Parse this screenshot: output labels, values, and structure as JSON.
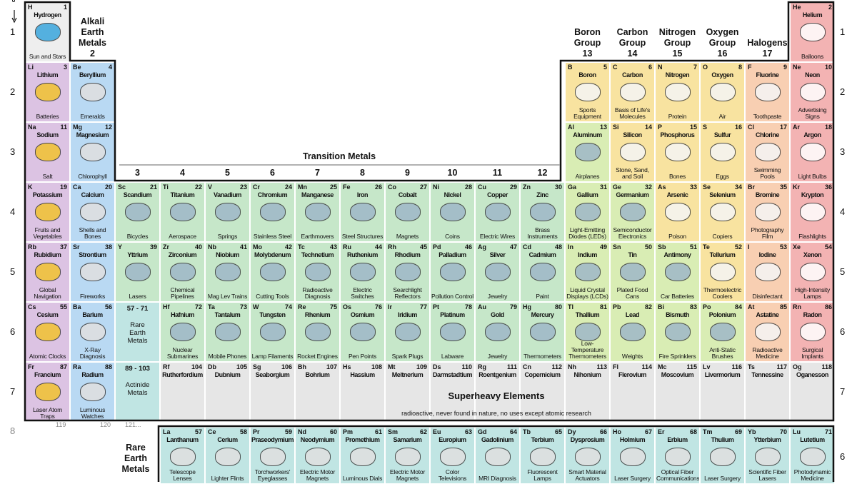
{
  "axis_label": "P",
  "categories": {
    "hydrogen": {
      "bg": "#eeeeee",
      "icon": "#3aa6dd"
    },
    "alkali": {
      "bg": "#dcc3e3",
      "icon": "#f2c230"
    },
    "alkaline": {
      "bg": "#b9d9f3",
      "icon": "#e0e0e0"
    },
    "transition": {
      "bg": "#c6e7c9",
      "icon": "#9fb8c8"
    },
    "post": {
      "bg": "#d9edb4",
      "icon": "#9fb8c8"
    },
    "nonmetal": {
      "bg": "#f8e3a0",
      "icon": "#f5f5f5"
    },
    "halogen": {
      "bg": "#f8cfb2",
      "icon": "#f5f5f5"
    },
    "noble": {
      "bg": "#f3b3b3",
      "icon": "#ffffff"
    },
    "rare": {
      "bg": "#c0e5e3",
      "icon": "#e0e0e0"
    },
    "superheavy": {
      "bg": "#e6e6e6",
      "icon": ""
    }
  },
  "group_labels": [
    {
      "text": "Alkali\nEarth\nMetals\n2",
      "col": 2
    },
    {
      "text": "Boron\nGroup\n13",
      "col": 13
    },
    {
      "text": "Carbon\nGroup\n14",
      "col": 14
    },
    {
      "text": "Nitrogen\nGroup\n15",
      "col": 15
    },
    {
      "text": "Oxygen\nGroup\n16",
      "col": 16
    },
    {
      "text": "Halogens\n17",
      "col": 17
    }
  ],
  "transition_title": "Transition Metals",
  "transition_groups": [
    "3",
    "4",
    "5",
    "6",
    "7",
    "8",
    "9",
    "10",
    "11",
    "12"
  ],
  "periods_left": [
    "1",
    "2",
    "3",
    "4",
    "5",
    "6",
    "7"
  ],
  "periods_right": [
    "1",
    "2",
    "3",
    "4",
    "5",
    "6",
    "7"
  ],
  "period8": {
    "label": "8",
    "values": [
      "119",
      "120",
      "121..."
    ]
  },
  "lanthanide_period": "6",
  "rare_earth_title": "Rare\nEarth\nMetals",
  "placeholders": [
    {
      "range": "57 - 71",
      "text": "Rare\nEarth\nMetals",
      "row": 6
    },
    {
      "range": "89 - 103",
      "text": "Actinide\nMetals",
      "row": 7
    }
  ],
  "superheavy": {
    "title": "Superheavy Elements",
    "subtitle": "radioactive, never found in nature, no uses except atomic research"
  },
  "elements": [
    {
      "s": "H",
      "n": 1,
      "name": "Hydrogen",
      "use": "Sun and Stars",
      "r": 1,
      "c": 1,
      "cat": "hydrogen"
    },
    {
      "s": "He",
      "n": 2,
      "name": "Helium",
      "use": "Balloons",
      "r": 1,
      "c": 18,
      "cat": "noble"
    },
    {
      "s": "Li",
      "n": 3,
      "name": "Lithium",
      "use": "Batteries",
      "r": 2,
      "c": 1,
      "cat": "alkali"
    },
    {
      "s": "Be",
      "n": 4,
      "name": "Beryllium",
      "use": "Emeralds",
      "r": 2,
      "c": 2,
      "cat": "alkaline"
    },
    {
      "s": "B",
      "n": 5,
      "name": "Boron",
      "use": "Sports Equipment",
      "r": 2,
      "c": 13,
      "cat": "nonmetal"
    },
    {
      "s": "C",
      "n": 6,
      "name": "Carbon",
      "use": "Basis of Life's Molecules",
      "r": 2,
      "c": 14,
      "cat": "nonmetal"
    },
    {
      "s": "N",
      "n": 7,
      "name": "Nitrogen",
      "use": "Protein",
      "r": 2,
      "c": 15,
      "cat": "nonmetal"
    },
    {
      "s": "O",
      "n": 8,
      "name": "Oxygen",
      "use": "Air",
      "r": 2,
      "c": 16,
      "cat": "nonmetal"
    },
    {
      "s": "F",
      "n": 9,
      "name": "Fluorine",
      "use": "Toothpaste",
      "r": 2,
      "c": 17,
      "cat": "halogen"
    },
    {
      "s": "Ne",
      "n": 10,
      "name": "Neon",
      "use": "Advertising Signs",
      "r": 2,
      "c": 18,
      "cat": "noble"
    },
    {
      "s": "Na",
      "n": 11,
      "name": "Sodium",
      "use": "Salt",
      "r": 3,
      "c": 1,
      "cat": "alkali"
    },
    {
      "s": "Mg",
      "n": 12,
      "name": "Magnesium",
      "use": "Chlorophyll",
      "r": 3,
      "c": 2,
      "cat": "alkaline"
    },
    {
      "s": "Al",
      "n": 13,
      "name": "Aluminum",
      "use": "Airplanes",
      "r": 3,
      "c": 13,
      "cat": "post"
    },
    {
      "s": "Si",
      "n": 14,
      "name": "Silicon",
      "use": "Stone, Sand, and Soil",
      "r": 3,
      "c": 14,
      "cat": "nonmetal"
    },
    {
      "s": "P",
      "n": 15,
      "name": "Phosphorus",
      "use": "Bones",
      "r": 3,
      "c": 15,
      "cat": "nonmetal"
    },
    {
      "s": "S",
      "n": 16,
      "name": "Sulfur",
      "use": "Eggs",
      "r": 3,
      "c": 16,
      "cat": "nonmetal"
    },
    {
      "s": "Cl",
      "n": 17,
      "name": "Chlorine",
      "use": "Swimming Pools",
      "r": 3,
      "c": 17,
      "cat": "halogen"
    },
    {
      "s": "Ar",
      "n": 18,
      "name": "Argon",
      "use": "Light Bulbs",
      "r": 3,
      "c": 18,
      "cat": "noble"
    },
    {
      "s": "K",
      "n": 19,
      "name": "Potassium",
      "use": "Fruits and Vegetables",
      "r": 4,
      "c": 1,
      "cat": "alkali"
    },
    {
      "s": "Ca",
      "n": 20,
      "name": "Calcium",
      "use": "Shells and Bones",
      "r": 4,
      "c": 2,
      "cat": "alkaline"
    },
    {
      "s": "Sc",
      "n": 21,
      "name": "Scandium",
      "use": "Bicycles",
      "r": 4,
      "c": 3,
      "cat": "transition"
    },
    {
      "s": "Ti",
      "n": 22,
      "name": "Titanium",
      "use": "Aerospace",
      "r": 4,
      "c": 4,
      "cat": "transition"
    },
    {
      "s": "V",
      "n": 23,
      "name": "Vanadium",
      "use": "Springs",
      "r": 4,
      "c": 5,
      "cat": "transition"
    },
    {
      "s": "Cr",
      "n": 24,
      "name": "Chromium",
      "use": "Stainless Steel",
      "r": 4,
      "c": 6,
      "cat": "transition"
    },
    {
      "s": "Mn",
      "n": 25,
      "name": "Manganese",
      "use": "Earthmovers",
      "r": 4,
      "c": 7,
      "cat": "transition"
    },
    {
      "s": "Fe",
      "n": 26,
      "name": "Iron",
      "use": "Steel Structures",
      "r": 4,
      "c": 8,
      "cat": "transition"
    },
    {
      "s": "Co",
      "n": 27,
      "name": "Cobalt",
      "use": "Magnets",
      "r": 4,
      "c": 9,
      "cat": "transition"
    },
    {
      "s": "Ni",
      "n": 28,
      "name": "Nickel",
      "use": "Coins",
      "r": 4,
      "c": 10,
      "cat": "transition"
    },
    {
      "s": "Cu",
      "n": 29,
      "name": "Copper",
      "use": "Electric Wires",
      "r": 4,
      "c": 11,
      "cat": "transition"
    },
    {
      "s": "Zn",
      "n": 30,
      "name": "Zinc",
      "use": "Brass Instruments",
      "r": 4,
      "c": 12,
      "cat": "transition"
    },
    {
      "s": "Ga",
      "n": 31,
      "name": "Gallium",
      "use": "Light-Emitting Diodes (LEDs)",
      "r": 4,
      "c": 13,
      "cat": "post"
    },
    {
      "s": "Ge",
      "n": 32,
      "name": "Germanium",
      "use": "Semiconductor Electronics",
      "r": 4,
      "c": 14,
      "cat": "post"
    },
    {
      "s": "As",
      "n": 33,
      "name": "Arsenic",
      "use": "Poison",
      "r": 4,
      "c": 15,
      "cat": "nonmetal"
    },
    {
      "s": "Se",
      "n": 34,
      "name": "Selenium",
      "use": "Copiers",
      "r": 4,
      "c": 16,
      "cat": "nonmetal"
    },
    {
      "s": "Br",
      "n": 35,
      "name": "Bromine",
      "use": "Photography Film",
      "r": 4,
      "c": 17,
      "cat": "halogen"
    },
    {
      "s": "Kr",
      "n": 36,
      "name": "Krypton",
      "use": "Flashlights",
      "r": 4,
      "c": 18,
      "cat": "noble"
    },
    {
      "s": "Rb",
      "n": 37,
      "name": "Rubidium",
      "use": "Global Navigation",
      "r": 5,
      "c": 1,
      "cat": "alkali"
    },
    {
      "s": "Sr",
      "n": 38,
      "name": "Strontium",
      "use": "Fireworks",
      "r": 5,
      "c": 2,
      "cat": "alkaline"
    },
    {
      "s": "Y",
      "n": 39,
      "name": "Yttrium",
      "use": "Lasers",
      "r": 5,
      "c": 3,
      "cat": "transition"
    },
    {
      "s": "Zr",
      "n": 40,
      "name": "Zirconium",
      "use": "Chemical Pipelines",
      "r": 5,
      "c": 4,
      "cat": "transition"
    },
    {
      "s": "Nb",
      "n": 41,
      "name": "Niobium",
      "use": "Mag Lev Trains",
      "r": 5,
      "c": 5,
      "cat": "transition"
    },
    {
      "s": "Mo",
      "n": 42,
      "name": "Molybdenum",
      "use": "Cutting Tools",
      "r": 5,
      "c": 6,
      "cat": "transition"
    },
    {
      "s": "Tc",
      "n": 43,
      "name": "Technetium",
      "use": "Radioactive Diagnosis",
      "r": 5,
      "c": 7,
      "cat": "transition"
    },
    {
      "s": "Ru",
      "n": 44,
      "name": "Ruthenium",
      "use": "Electric Switches",
      "r": 5,
      "c": 8,
      "cat": "transition"
    },
    {
      "s": "Rh",
      "n": 45,
      "name": "Rhodium",
      "use": "Searchlight Reflectors",
      "r": 5,
      "c": 9,
      "cat": "transition"
    },
    {
      "s": "Pd",
      "n": 46,
      "name": "Palladium",
      "use": "Pollution Control",
      "r": 5,
      "c": 10,
      "cat": "transition"
    },
    {
      "s": "Ag",
      "n": 47,
      "name": "Silver",
      "use": "Jewelry",
      "r": 5,
      "c": 11,
      "cat": "transition"
    },
    {
      "s": "Cd",
      "n": 48,
      "name": "Cadmium",
      "use": "Paint",
      "r": 5,
      "c": 12,
      "cat": "transition"
    },
    {
      "s": "In",
      "n": 49,
      "name": "Indium",
      "use": "Liquid Crystal Displays (LCDs)",
      "r": 5,
      "c": 13,
      "cat": "post"
    },
    {
      "s": "Sn",
      "n": 50,
      "name": "Tin",
      "use": "Plated Food Cans",
      "r": 5,
      "c": 14,
      "cat": "post"
    },
    {
      "s": "Sb",
      "n": 51,
      "name": "Antimony",
      "use": "Car Batteries",
      "r": 5,
      "c": 15,
      "cat": "post"
    },
    {
      "s": "Te",
      "n": 52,
      "name": "Tellurium",
      "use": "Thermoelectric Coolers",
      "r": 5,
      "c": 16,
      "cat": "nonmetal"
    },
    {
      "s": "I",
      "n": 53,
      "name": "Iodine",
      "use": "Disinfectant",
      "r": 5,
      "c": 17,
      "cat": "halogen"
    },
    {
      "s": "Xe",
      "n": 54,
      "name": "Xenon",
      "use": "High-Intensity Lamps",
      "r": 5,
      "c": 18,
      "cat": "noble"
    },
    {
      "s": "Cs",
      "n": 55,
      "name": "Cesium",
      "use": "Atomic Clocks",
      "r": 6,
      "c": 1,
      "cat": "alkali"
    },
    {
      "s": "Ba",
      "n": 56,
      "name": "Barium",
      "use": "X-Ray Diagnosis",
      "r": 6,
      "c": 2,
      "cat": "alkaline"
    },
    {
      "s": "Hf",
      "n": 72,
      "name": "Hafnium",
      "use": "Nuclear Submarines",
      "r": 6,
      "c": 4,
      "cat": "transition"
    },
    {
      "s": "Ta",
      "n": 73,
      "name": "Tantalum",
      "use": "Mobile Phones",
      "r": 6,
      "c": 5,
      "cat": "transition"
    },
    {
      "s": "W",
      "n": 74,
      "name": "Tungsten",
      "use": "Lamp Filaments",
      "r": 6,
      "c": 6,
      "cat": "transition"
    },
    {
      "s": "Re",
      "n": 75,
      "name": "Rhenium",
      "use": "Rocket Engines",
      "r": 6,
      "c": 7,
      "cat": "transition"
    },
    {
      "s": "Os",
      "n": 76,
      "name": "Osmium",
      "use": "Pen Points",
      "r": 6,
      "c": 8,
      "cat": "transition"
    },
    {
      "s": "Ir",
      "n": 77,
      "name": "Iridium",
      "use": "Spark Plugs",
      "r": 6,
      "c": 9,
      "cat": "transition"
    },
    {
      "s": "Pt",
      "n": 78,
      "name": "Platinum",
      "use": "Labware",
      "r": 6,
      "c": 10,
      "cat": "transition"
    },
    {
      "s": "Au",
      "n": 79,
      "name": "Gold",
      "use": "Jewelry",
      "r": 6,
      "c": 11,
      "cat": "transition"
    },
    {
      "s": "Hg",
      "n": 80,
      "name": "Mercury",
      "use": "Thermometers",
      "r": 6,
      "c": 12,
      "cat": "transition"
    },
    {
      "s": "Tl",
      "n": 81,
      "name": "Thallium",
      "use": "Low-Temperature Thermometers",
      "r": 6,
      "c": 13,
      "cat": "post"
    },
    {
      "s": "Pb",
      "n": 82,
      "name": "Lead",
      "use": "Weights",
      "r": 6,
      "c": 14,
      "cat": "post"
    },
    {
      "s": "Bi",
      "n": 83,
      "name": "Bismuth",
      "use": "Fire Sprinklers",
      "r": 6,
      "c": 15,
      "cat": "post"
    },
    {
      "s": "Po",
      "n": 84,
      "name": "Polonium",
      "use": "Anti-Static Brushes",
      "r": 6,
      "c": 16,
      "cat": "post"
    },
    {
      "s": "At",
      "n": 85,
      "name": "Astatine",
      "use": "Radioactive Medicine",
      "r": 6,
      "c": 17,
      "cat": "halogen"
    },
    {
      "s": "Rn",
      "n": 86,
      "name": "Radon",
      "use": "Surgical Implants",
      "r": 6,
      "c": 18,
      "cat": "noble"
    },
    {
      "s": "Fr",
      "n": 87,
      "name": "Francium",
      "use": "Laser Atom Traps",
      "r": 7,
      "c": 1,
      "cat": "alkali"
    },
    {
      "s": "Ra",
      "n": 88,
      "name": "Radium",
      "use": "Luminous Watches",
      "r": 7,
      "c": 2,
      "cat": "alkaline"
    },
    {
      "s": "Rf",
      "n": 104,
      "name": "Rutherfordium",
      "use": "",
      "r": 7,
      "c": 4,
      "cat": "superheavy"
    },
    {
      "s": "Db",
      "n": 105,
      "name": "Dubnium",
      "use": "",
      "r": 7,
      "c": 5,
      "cat": "superheavy"
    },
    {
      "s": "Sg",
      "n": 106,
      "name": "Seaborgium",
      "use": "",
      "r": 7,
      "c": 6,
      "cat": "superheavy"
    },
    {
      "s": "Bh",
      "n": 107,
      "name": "Bohrium",
      "use": "",
      "r": 7,
      "c": 7,
      "cat": "superheavy"
    },
    {
      "s": "Hs",
      "n": 108,
      "name": "Hassium",
      "use": "",
      "r": 7,
      "c": 8,
      "cat": "superheavy"
    },
    {
      "s": "Mt",
      "n": 109,
      "name": "Meitnerium",
      "use": "",
      "r": 7,
      "c": 9,
      "cat": "superheavy"
    },
    {
      "s": "Ds",
      "n": 110,
      "name": "Darmstadtium",
      "use": "",
      "r": 7,
      "c": 10,
      "cat": "superheavy"
    },
    {
      "s": "Rg",
      "n": 111,
      "name": "Roentgenium",
      "use": "",
      "r": 7,
      "c": 11,
      "cat": "superheavy"
    },
    {
      "s": "Cn",
      "n": 112,
      "name": "Copernicium",
      "use": "",
      "r": 7,
      "c": 12,
      "cat": "superheavy"
    },
    {
      "s": "Nh",
      "n": 113,
      "name": "Nihonium",
      "use": "",
      "r": 7,
      "c": 13,
      "cat": "superheavy"
    },
    {
      "s": "Fl",
      "n": 114,
      "name": "Flerovium",
      "use": "",
      "r": 7,
      "c": 14,
      "cat": "superheavy"
    },
    {
      "s": "Mc",
      "n": 115,
      "name": "Moscovium",
      "use": "",
      "r": 7,
      "c": 15,
      "cat": "superheavy"
    },
    {
      "s": "Lv",
      "n": 116,
      "name": "Livermorium",
      "use": "",
      "r": 7,
      "c": 16,
      "cat": "superheavy"
    },
    {
      "s": "Ts",
      "n": 117,
      "name": "Tennessine",
      "use": "",
      "r": 7,
      "c": 17,
      "cat": "superheavy"
    },
    {
      "s": "Og",
      "n": 118,
      "name": "Oganesson",
      "use": "",
      "r": 7,
      "c": 18,
      "cat": "superheavy"
    },
    {
      "s": "La",
      "n": 57,
      "name": "Lanthanum",
      "use": "Telescope Lenses",
      "r": 8,
      "c": 4,
      "cat": "rare"
    },
    {
      "s": "Ce",
      "n": 58,
      "name": "Cerium",
      "use": "Lighter Flints",
      "r": 8,
      "c": 5,
      "cat": "rare"
    },
    {
      "s": "Pr",
      "n": 59,
      "name": "Praseodymium",
      "use": "Torchworkers' Eyeglasses",
      "r": 8,
      "c": 6,
      "cat": "rare"
    },
    {
      "s": "Nd",
      "n": 60,
      "name": "Neodymium",
      "use": "Electric Motor Magnets",
      "r": 8,
      "c": 7,
      "cat": "rare"
    },
    {
      "s": "Pm",
      "n": 61,
      "name": "Promethium",
      "use": "Luminous Dials",
      "r": 8,
      "c": 8,
      "cat": "rare"
    },
    {
      "s": "Sm",
      "n": 62,
      "name": "Samarium",
      "use": "Electric Motor Magnets",
      "r": 8,
      "c": 9,
      "cat": "rare"
    },
    {
      "s": "Eu",
      "n": 63,
      "name": "Europium",
      "use": "Color Televisions",
      "r": 8,
      "c": 10,
      "cat": "rare"
    },
    {
      "s": "Gd",
      "n": 64,
      "name": "Gadolinium",
      "use": "MRI Diagnosis",
      "r": 8,
      "c": 11,
      "cat": "rare"
    },
    {
      "s": "Tb",
      "n": 65,
      "name": "Terbium",
      "use": "Fluorescent Lamps",
      "r": 8,
      "c": 12,
      "cat": "rare"
    },
    {
      "s": "Dy",
      "n": 66,
      "name": "Dysprosium",
      "use": "Smart Material Actuators",
      "r": 8,
      "c": 13,
      "cat": "rare"
    },
    {
      "s": "Ho",
      "n": 67,
      "name": "Holmium",
      "use": "Laser Surgery",
      "r": 8,
      "c": 14,
      "cat": "rare"
    },
    {
      "s": "Er",
      "n": 68,
      "name": "Erbium",
      "use": "Optical Fiber Communications",
      "r": 8,
      "c": 15,
      "cat": "rare"
    },
    {
      "s": "Tm",
      "n": 69,
      "name": "Thulium",
      "use": "Laser Surgery",
      "r": 8,
      "c": 16,
      "cat": "rare"
    },
    {
      "s": "Yb",
      "n": 70,
      "name": "Ytterbium",
      "use": "Scientific Fiber Lasers",
      "r": 8,
      "c": 17,
      "cat": "rare"
    },
    {
      "s": "Lu",
      "n": 71,
      "name": "Lutetium",
      "use": "Photodynamic Medicine",
      "r": 8,
      "c": 18,
      "cat": "rare"
    }
  ]
}
